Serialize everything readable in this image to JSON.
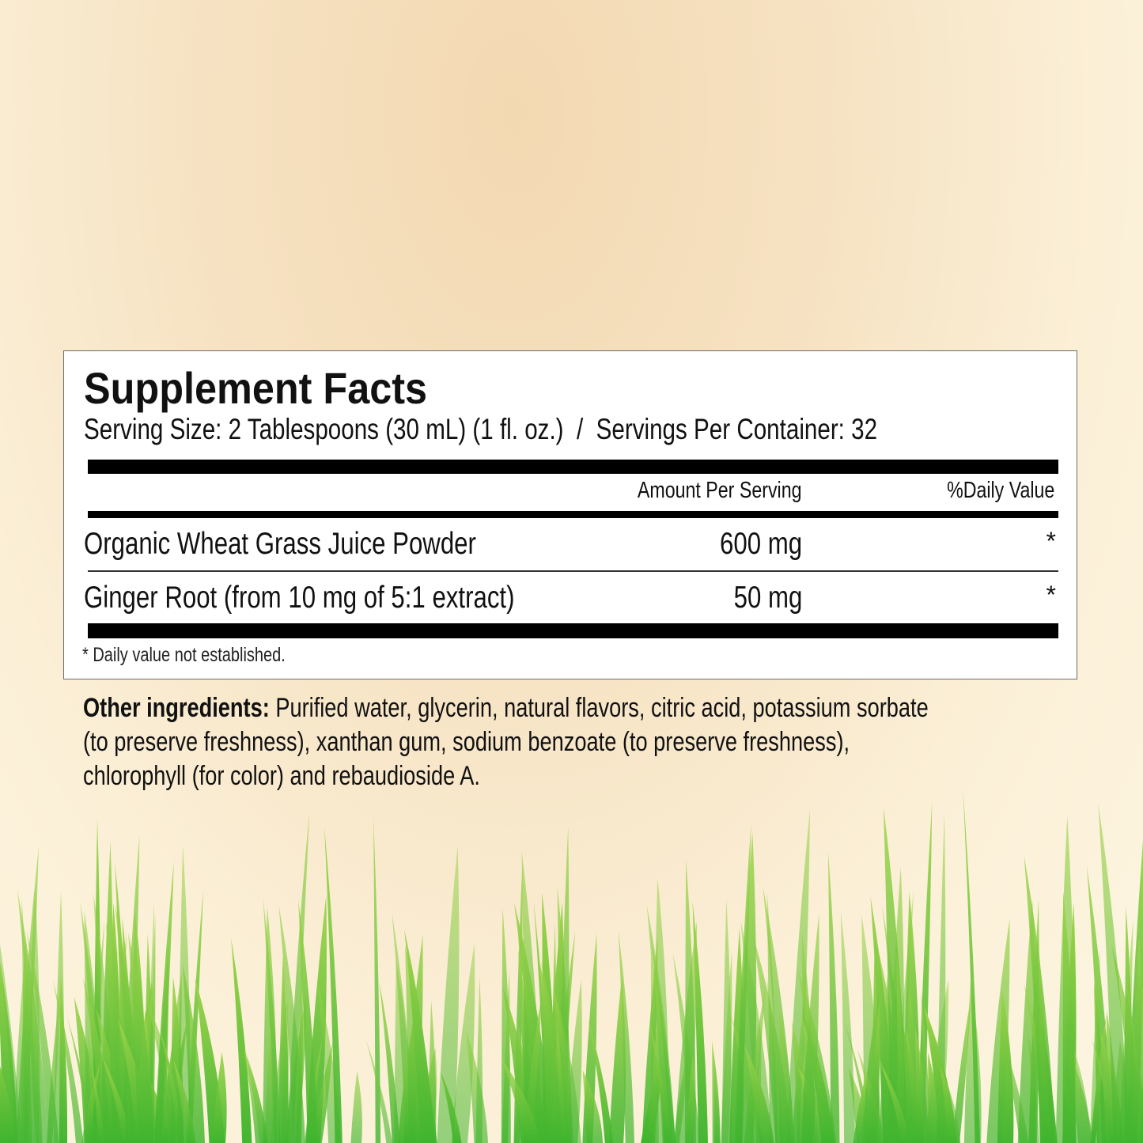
{
  "facts": {
    "title": "Supplement Facts",
    "serving_line": "Serving Size: 2 Tablespoons (30 mL) (1 fl. oz.)  /  Servings Per Container: 32",
    "header": {
      "amount": "Amount Per Serving",
      "dv": "%Daily Value"
    },
    "rows": [
      {
        "name": "Organic Wheat Grass Juice Powder",
        "amount": "600 mg",
        "dv": "*"
      },
      {
        "name": "Ginger Root (from 10 mg of 5:1 extract)",
        "amount": "50 mg",
        "dv": "*"
      }
    ],
    "footnote": "* Daily value not established."
  },
  "other_ingredients": {
    "label": "Other ingredients:",
    "lines": [
      " Purified water, glycerin, natural flavors, citric acid, potassium sorbate",
      "(to preserve freshness), xanthan gum, sodium benzoate (to preserve freshness),",
      "chlorophyll (for color) and rebaudioside A."
    ]
  },
  "colors": {
    "grass_dark": "#3fb42e",
    "grass_light": "#9fd44a",
    "background": "#f8e8cc"
  }
}
